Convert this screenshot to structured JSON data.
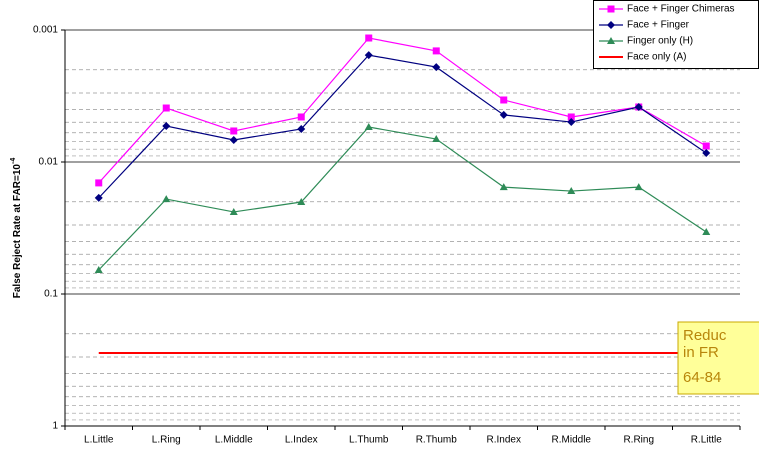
{
  "chart_data": {
    "type": "line",
    "ylabel": "False Reject Rate at FAR=10",
    "ylabel_sup": "-4",
    "categories": [
      "L.Little",
      "L.Ring",
      "L.Middle",
      "L.Index",
      "L.Thumb",
      "R.Thumb",
      "R.Index",
      "R.Middle",
      "R.Ring",
      "R.Little"
    ],
    "series": [
      {
        "name": "Face + Finger Chimeras",
        "color": "#ff00ff",
        "marker": "square",
        "values": [
          0.0144,
          0.0039,
          0.00582,
          0.00456,
          0.00115,
          0.00144,
          0.00339,
          0.00456,
          0.00383,
          0.00757
        ]
      },
      {
        "name": "Face + Finger",
        "color": "#000080",
        "marker": "diamond",
        "values": [
          0.0187,
          0.00534,
          0.00681,
          0.00562,
          0.00155,
          0.00191,
          0.0044,
          0.00498,
          0.00383,
          0.00855
        ]
      },
      {
        "name": "Finger only (H)",
        "color": "#2e8b57",
        "marker": "triangle",
        "values": [
          0.0658,
          0.0191,
          0.0239,
          0.0201,
          0.00543,
          0.0067,
          0.0155,
          0.0166,
          0.0155,
          0.0339
        ]
      },
      {
        "name": "Face only (A)",
        "color": "#ff0000",
        "marker": "none",
        "values": [
          0.28,
          0.28,
          0.28,
          0.28,
          0.28,
          0.28,
          0.28,
          0.28,
          0.28,
          0.28
        ]
      }
    ],
    "log_y": true,
    "y_inverted": true,
    "ylim": [
      0.001,
      1
    ],
    "yticks": [
      0.001,
      0.01,
      0.1,
      1
    ],
    "minor_yticks": [
      0.002,
      0.003,
      0.004,
      0.005,
      0.006,
      0.007,
      0.008,
      0.009,
      0.02,
      0.03,
      0.04,
      0.05,
      0.06,
      0.07,
      0.08,
      0.09,
      0.2,
      0.3,
      0.4,
      0.5,
      0.6,
      0.7,
      0.8,
      0.9
    ],
    "grid": true,
    "legend": "top-right",
    "annotation": [
      "Reduc",
      "in FR",
      "64-84"
    ]
  }
}
